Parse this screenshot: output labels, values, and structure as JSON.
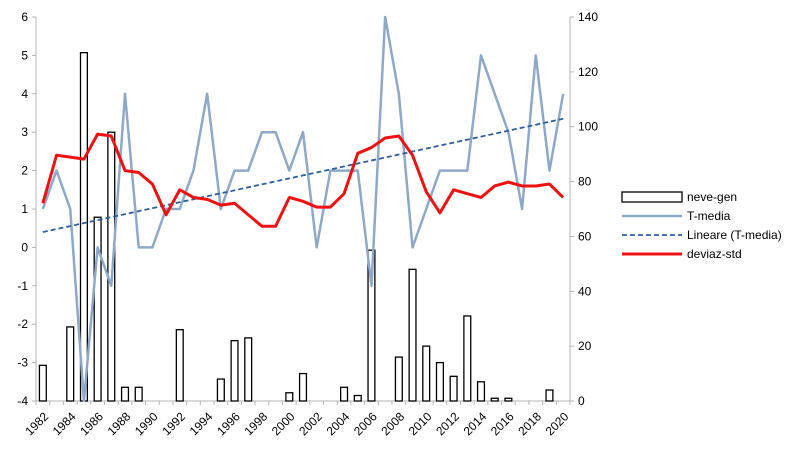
{
  "chart_data": {
    "type": "bar+line",
    "title": "",
    "x": [
      1982,
      1983,
      1984,
      1985,
      1986,
      1987,
      1988,
      1989,
      1990,
      1991,
      1992,
      1993,
      1994,
      1995,
      1996,
      1997,
      1998,
      1999,
      2000,
      2001,
      2002,
      2003,
      2004,
      2005,
      2006,
      2007,
      2008,
      2009,
      2010,
      2011,
      2012,
      2013,
      2014,
      2015,
      2016,
      2017,
      2018,
      2019,
      2020
    ],
    "x_tick_labels": [
      "1982",
      "1984",
      "1986",
      "1988",
      "1990",
      "1992",
      "1994",
      "1996",
      "1998",
      "2000",
      "2002",
      "2004",
      "2006",
      "2008",
      "2010",
      "2012",
      "2014",
      "2016",
      "2018",
      "2020"
    ],
    "y_left": {
      "ylim": [
        -4,
        6
      ],
      "ticks": [
        "-4",
        "-3",
        "-2",
        "-1",
        "0",
        "1",
        "2",
        "3",
        "4",
        "5",
        "6"
      ]
    },
    "y_right": {
      "ylim": [
        0,
        140
      ],
      "ticks": [
        "0",
        "20",
        "40",
        "60",
        "80",
        "100",
        "120",
        "140"
      ]
    },
    "grid": false,
    "legend_position": "right",
    "series": [
      {
        "name": "neve-gen",
        "type": "bar",
        "axis": "right",
        "color": "#000000",
        "fill": "#ffffff",
        "values": [
          13,
          0,
          27,
          127,
          67,
          98,
          5,
          5,
          0,
          0,
          26,
          0,
          0,
          8,
          22,
          23,
          0,
          0,
          3,
          10,
          0,
          0,
          5,
          2,
          55,
          0,
          16,
          48,
          20,
          14,
          9,
          31,
          7,
          1,
          1,
          0,
          0,
          4,
          0
        ]
      },
      {
        "name": "T-media",
        "type": "line",
        "axis": "left",
        "color": "#8ea9c8",
        "values": [
          1,
          2,
          1,
          -4,
          0,
          -1,
          4,
          0,
          0,
          1,
          1,
          2,
          4,
          1,
          2,
          2,
          3,
          3,
          2,
          3,
          0,
          2,
          2,
          2,
          -1,
          6,
          4,
          0,
          1,
          2,
          2,
          2,
          5,
          4,
          3,
          1,
          5,
          2,
          4
        ]
      },
      {
        "name": "Lineare (T-media)",
        "type": "trendline",
        "axis": "left",
        "color": "#2e5f99",
        "start": 0.4,
        "end": 3.35
      },
      {
        "name": "deviaz-std",
        "type": "line",
        "axis": "left",
        "color": "#ee1111",
        "values": [
          1.15,
          2.4,
          2.35,
          2.3,
          2.95,
          2.9,
          2.0,
          1.95,
          1.65,
          0.85,
          1.5,
          1.3,
          1.25,
          1.1,
          1.15,
          0.85,
          0.55,
          0.55,
          1.3,
          1.2,
          1.05,
          1.05,
          1.4,
          2.45,
          2.6,
          2.85,
          2.9,
          2.4,
          1.45,
          0.9,
          1.5,
          1.4,
          1.3,
          1.6,
          1.7,
          1.6,
          1.6,
          1.65,
          1.3
        ]
      }
    ]
  }
}
